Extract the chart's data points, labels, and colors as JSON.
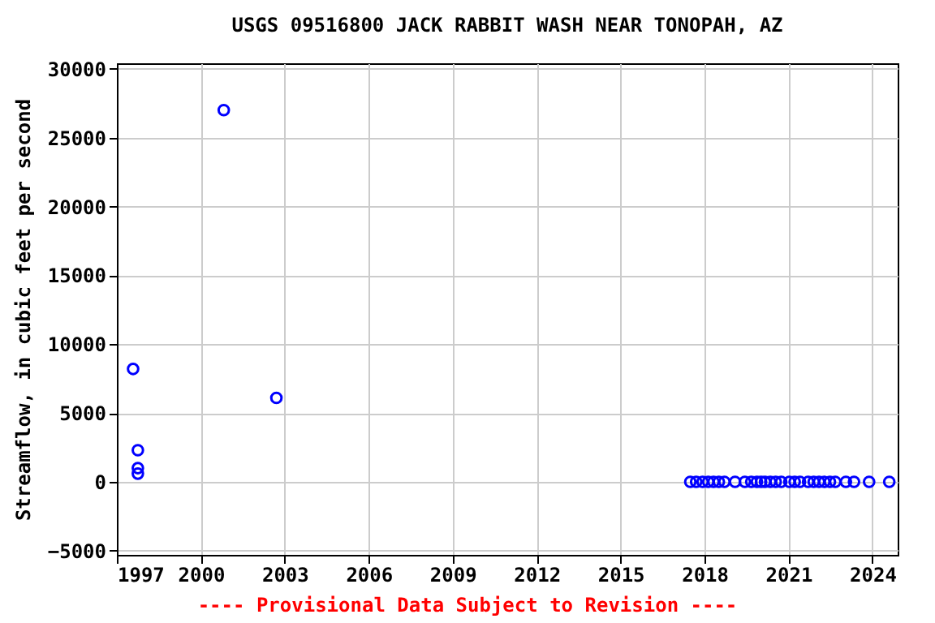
{
  "chart_data": {
    "type": "scatter",
    "title": "USGS 09516800 JACK RABBIT WASH NEAR TONOPAH, AZ",
    "ylabel": "Streamflow, in cubic feet per second",
    "annotations": [
      "---- Provisional Data Subject to Revision ----"
    ],
    "series": [
      {
        "color": "#0000ff",
        "x": [
          1997.58,
          1997.75,
          1997.75,
          1997.75,
          2000.82,
          2002.7,
          2017.49,
          2017.7,
          2017.93,
          2018.13,
          2018.32,
          2018.51,
          2018.71,
          2019.09,
          2019.44,
          2019.67,
          2019.87,
          2020.02,
          2020.16,
          2020.35,
          2020.54,
          2020.74,
          2021.03,
          2021.22,
          2021.41,
          2021.7,
          2021.9,
          2022.09,
          2022.28,
          2022.48,
          2022.67,
          2023.05,
          2023.34,
          2023.88,
          2024.6
        ],
        "values": [
          8200,
          2300,
          1000,
          600,
          27000,
          6100,
          0,
          0,
          0,
          0,
          0,
          0,
          0,
          0,
          0,
          0,
          0,
          0,
          0,
          0,
          0,
          0,
          0,
          0,
          0,
          0,
          0,
          0,
          0,
          0,
          0,
          0,
          0,
          0,
          0
        ]
      }
    ],
    "xlim": [
      1997,
      2024.9
    ],
    "xticks": [
      1997,
      2000,
      2003,
      2006,
      2009,
      2012,
      2015,
      2018,
      2021,
      2024
    ],
    "ylim": [
      -5300,
      30400
    ],
    "yticks": [
      -5000,
      0,
      5000,
      10000,
      15000,
      20000,
      25000,
      30000
    ],
    "grid": true,
    "marker": "circle"
  }
}
